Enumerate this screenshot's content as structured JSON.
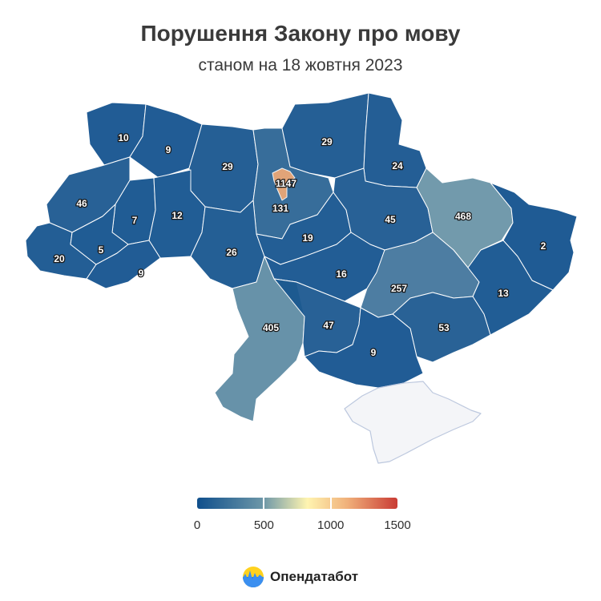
{
  "title": "Порушення Закону про мову",
  "subtitle": "станом на 18 жовтня 2023",
  "colors": {
    "scale": [
      "#0f4f8c",
      "#6d97a8",
      "#fff4b0",
      "#f0b07a",
      "#c93b34"
    ],
    "no_data": "#f4f5f8"
  },
  "map": {
    "regions": [
      {
        "id": "volyn",
        "value": 10
      },
      {
        "id": "rivne",
        "value": 9
      },
      {
        "id": "zhytomyr",
        "value": 29
      },
      {
        "id": "kyiv-oblast",
        "value": 131
      },
      {
        "id": "kyiv-city",
        "value": 1147
      },
      {
        "id": "chernihiv",
        "value": 29
      },
      {
        "id": "sumy",
        "value": 24
      },
      {
        "id": "lviv",
        "value": 46
      },
      {
        "id": "ternopil",
        "value": 7
      },
      {
        "id": "khmelnytskyi",
        "value": 12
      },
      {
        "id": "vinnytsia",
        "value": 26
      },
      {
        "id": "cherkasy",
        "value": 19
      },
      {
        "id": "poltava",
        "value": 45
      },
      {
        "id": "kharkiv",
        "value": 468
      },
      {
        "id": "luhansk",
        "value": 2
      },
      {
        "id": "zakarpattia",
        "value": 20
      },
      {
        "id": "ivano-frankivsk",
        "value": 5
      },
      {
        "id": "chernivtsi",
        "value": 9
      },
      {
        "id": "kirovohrad",
        "value": 16
      },
      {
        "id": "dnipropetrovsk",
        "value": 257
      },
      {
        "id": "donetsk",
        "value": 13
      },
      {
        "id": "odesa",
        "value": 405
      },
      {
        "id": "mykolaiv",
        "value": 47
      },
      {
        "id": "zaporizhzhia",
        "value": 53
      },
      {
        "id": "kherson",
        "value": 9
      },
      {
        "id": "crimea",
        "value": null
      }
    ]
  },
  "legend": {
    "min": 0,
    "max": 1500,
    "ticks": [
      "0",
      "500",
      "1000",
      "1500"
    ]
  },
  "brand": {
    "name": "Опендатабот",
    "logo_icon": "opendatabot-logo-icon"
  }
}
